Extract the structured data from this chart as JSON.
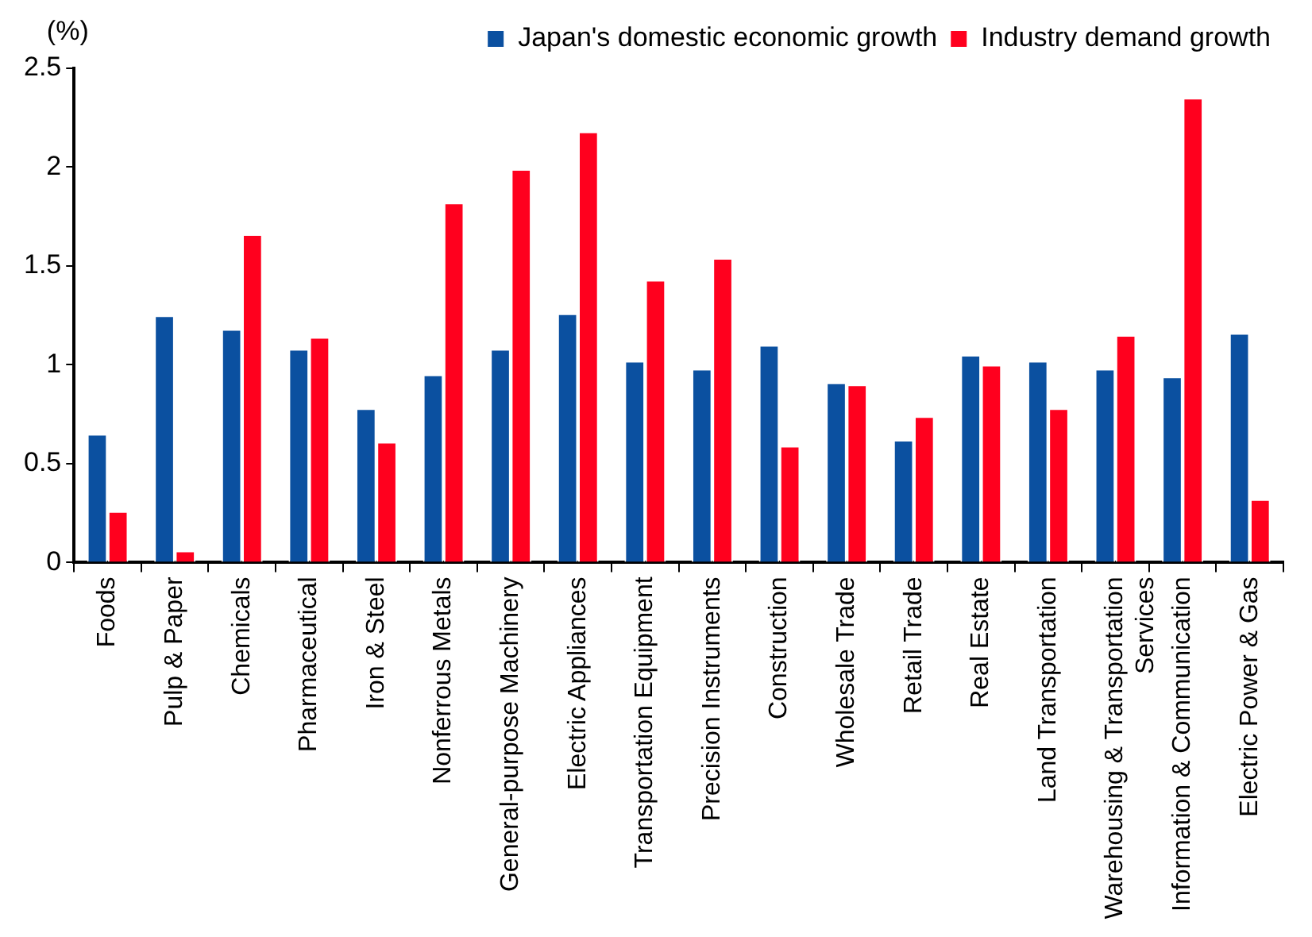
{
  "chart_data": {
    "type": "bar",
    "ylabel": "(%)",
    "categories": [
      "Foods",
      "Pulp & Paper",
      "Chemicals",
      "Pharmaceutical",
      "Iron & Steel",
      "Nonferrous Metals",
      "General-purpose Machinery",
      "Electric Appliances",
      "Transportation Equipment",
      "Precision Instruments",
      "Construction",
      "Wholesale Trade",
      "Retail Trade",
      "Real Estate",
      "Land Transportation",
      "Warehousing & Transportation Services",
      "Information & Communication",
      "Electric Power & Gas"
    ],
    "series": [
      {
        "name": "Japan's domestic economic growth",
        "color": "#0b50a0",
        "values": [
          0.65,
          1.25,
          1.18,
          1.08,
          0.78,
          0.95,
          1.08,
          1.26,
          1.02,
          0.98,
          1.1,
          0.91,
          0.62,
          1.05,
          1.02,
          0.98,
          0.94,
          1.16
        ]
      },
      {
        "name": "Industry demand growth",
        "color": "#ff001e",
        "values": [
          0.26,
          0.06,
          1.66,
          1.14,
          0.61,
          1.82,
          1.99,
          2.18,
          1.43,
          1.54,
          0.59,
          0.9,
          0.74,
          1.0,
          0.78,
          1.15,
          2.35,
          0.32
        ]
      }
    ],
    "ylim": [
      0,
      2.5
    ],
    "yticks": [
      0,
      0.5,
      1,
      1.5,
      2,
      2.5
    ],
    "grid": false,
    "legend": "top right"
  }
}
